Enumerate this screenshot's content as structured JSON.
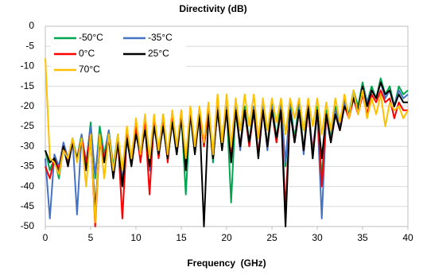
{
  "chart_data": {
    "type": "line",
    "title": "Directivity (dB)",
    "x_label": "Frequency  (GHz)",
    "x": [
      0,
      0.5,
      1,
      1.5,
      2,
      2.5,
      3,
      3.5,
      4,
      4.5,
      5,
      5.5,
      6,
      6.5,
      7,
      7.5,
      8,
      8.5,
      9,
      9.5,
      10,
      10.5,
      11,
      11.5,
      12,
      12.5,
      13,
      13.5,
      14,
      14.5,
      15,
      15.5,
      16,
      16.5,
      17,
      17.5,
      18,
      18.5,
      19,
      19.5,
      20,
      20.5,
      21,
      21.5,
      22,
      22.5,
      23,
      23.5,
      24,
      24.5,
      25,
      25.5,
      26,
      26.5,
      27,
      27.5,
      28,
      28.5,
      29,
      29.5,
      30,
      30.5,
      31,
      31.5,
      32,
      32.5,
      33,
      33.5,
      34,
      34.5,
      35,
      35.5,
      36,
      36.5,
      37,
      37.5,
      38,
      38.5,
      39,
      39.5,
      40
    ],
    "series": [
      {
        "name": "-50°C",
        "color": "#00a550",
        "values": [
          -31,
          -36,
          -33,
          -38,
          -30,
          -34,
          -28,
          -33,
          -27,
          -35,
          -24,
          -38,
          -25,
          -32,
          -26,
          -35,
          -27,
          -40,
          -26,
          -33,
          -24,
          -32,
          -23,
          -36,
          -23,
          -31,
          -22,
          -33,
          -22,
          -30,
          -22,
          -42,
          -21,
          -31,
          -21,
          -30,
          -20,
          -34,
          -20,
          -29,
          -20,
          -44,
          -20,
          -30,
          -20,
          -29,
          -20,
          -33,
          -19,
          -30,
          -19,
          -28,
          -19,
          -35,
          -19,
          -28,
          -19,
          -31,
          -19,
          -33,
          -20,
          -38,
          -21,
          -28,
          -20,
          -25,
          -18,
          -22,
          -16,
          -20,
          -14,
          -19,
          -15,
          -18,
          -13,
          -17,
          -15,
          -20,
          -15,
          -17,
          -16
        ]
      },
      {
        "name": "-35°C",
        "color": "#4472c4",
        "values": [
          -33,
          -48,
          -32,
          -35,
          -29,
          -33,
          -28,
          -47,
          -27,
          -34,
          -25,
          -37,
          -27,
          -33,
          -26,
          -36,
          -28,
          -39,
          -26,
          -34,
          -25,
          -33,
          -24,
          -36,
          -23,
          -32,
          -23,
          -33,
          -22,
          -31,
          -22,
          -35,
          -21,
          -31,
          -21,
          -30,
          -21,
          -33,
          -20,
          -30,
          -20,
          -34,
          -20,
          -31,
          -21,
          -30,
          -20,
          -32,
          -20,
          -31,
          -20,
          -29,
          -20,
          -34,
          -20,
          -29,
          -20,
          -32,
          -20,
          -31,
          -21,
          -48,
          -22,
          -29,
          -21,
          -25,
          -19,
          -22,
          -17,
          -21,
          -15,
          -19,
          -16,
          -18,
          -14,
          -18,
          -16,
          -20,
          -16,
          -18,
          -17
        ]
      },
      {
        "name": "0°C",
        "color": "#ff0000",
        "values": [
          -35,
          -38,
          -33,
          -36,
          -30,
          -34,
          -29,
          -33,
          -28,
          -34,
          -27,
          -50,
          -28,
          -33,
          -28,
          -37,
          -28,
          -48,
          -27,
          -33,
          -25,
          -34,
          -24,
          -42,
          -23,
          -33,
          -23,
          -34,
          -22,
          -32,
          -21,
          -34,
          -21,
          -31,
          -21,
          -30,
          -21,
          -33,
          -21,
          -30,
          -21,
          -33,
          -21,
          -30,
          -21,
          -30,
          -21,
          -32,
          -21,
          -30,
          -21,
          -29,
          -21,
          -46,
          -21,
          -29,
          -21,
          -31,
          -21,
          -32,
          -21,
          -40,
          -22,
          -29,
          -22,
          -26,
          -20,
          -23,
          -18,
          -22,
          -17,
          -22,
          -17,
          -19,
          -16,
          -19,
          -18,
          -23,
          -19,
          -21,
          -21
        ]
      },
      {
        "name": "25°C",
        "color": "#000000",
        "values": [
          -31,
          -34,
          -33,
          -37,
          -30,
          -35,
          -29,
          -33,
          -29,
          -36,
          -28,
          -46,
          -29,
          -34,
          -28,
          -38,
          -29,
          -40,
          -28,
          -35,
          -27,
          -32,
          -26,
          -35,
          -25,
          -32,
          -25,
          -33,
          -24,
          -32,
          -23,
          -36,
          -22,
          -32,
          -22,
          -50,
          -22,
          -33,
          -21,
          -31,
          -21,
          -34,
          -21,
          -30,
          -21,
          -29,
          -21,
          -33,
          -21,
          -30,
          -21,
          -28,
          -21,
          -50,
          -21,
          -29,
          -21,
          -31,
          -20,
          -33,
          -21,
          -33,
          -22,
          -29,
          -22,
          -26,
          -20,
          -22,
          -18,
          -21,
          -15,
          -20,
          -16,
          -18,
          -14,
          -17,
          -16,
          -20,
          -17,
          -19,
          -19
        ]
      },
      {
        "name": "70°C",
        "color": "#ffc000",
        "values": [
          -8,
          -33,
          -34,
          -37,
          -31,
          -33,
          -28,
          -34,
          -28,
          -40,
          -27,
          -49,
          -27,
          -38,
          -27,
          -36,
          -27,
          -36,
          -25,
          -33,
          -23,
          -32,
          -22,
          -33,
          -22,
          -31,
          -22,
          -32,
          -21,
          -30,
          -21,
          -33,
          -20,
          -30,
          -20,
          -29,
          -19,
          -32,
          -17,
          -29,
          -17,
          -30,
          -18,
          -26,
          -17,
          -25,
          -17,
          -28,
          -18,
          -26,
          -18,
          -24,
          -18,
          -27,
          -18,
          -23,
          -18,
          -26,
          -18,
          -25,
          -18,
          -27,
          -19,
          -26,
          -18,
          -24,
          -17,
          -23,
          -16,
          -22,
          -16,
          -23,
          -18,
          -22,
          -17,
          -25,
          -19,
          -21,
          -20,
          -23,
          -21
        ]
      }
    ],
    "xlim": [
      0,
      40
    ],
    "xticks": [
      0,
      5,
      10,
      15,
      20,
      25,
      30,
      35,
      40
    ],
    "ylim": [
      -50,
      0
    ],
    "yticks": [
      0,
      -5,
      -10,
      -15,
      -20,
      -25,
      -30,
      -35,
      -40,
      -45,
      -50
    ],
    "grid": true
  }
}
